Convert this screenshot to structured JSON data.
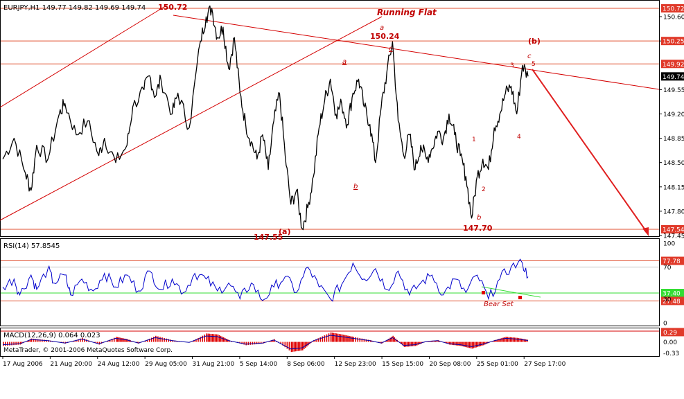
{
  "header": {
    "symbol_line": "EURJPY,H1  149.77 149.82 149.69 149.74",
    "rsi_label": "RSI(14) 57.8545",
    "macd_label": "MACD(12,26,9) 0.064 0.023",
    "copyright": "MetaTrader, © 2001-2006 MetaQuotes Software Corp."
  },
  "annotations": {
    "title": "Running Flat",
    "high_main": "150.72",
    "high_mid": "150.24",
    "low_a": "147.55",
    "low_b": "147.70",
    "wave_a_paren": "(a)",
    "wave_b_paren": "(b)",
    "wave_letters": {
      "a_top": "a",
      "c_top": "c",
      "a_mid": "a",
      "b_mid": "b",
      "b_low": "b",
      "c_right": "c"
    },
    "wave_numbers": {
      "n1": "1",
      "n2": "2",
      "n3": "3",
      "n4": "4",
      "n5": "5"
    },
    "bear_set": "Bear  Set"
  },
  "colors": {
    "price": "#000000",
    "rsi_line": "#0000cc",
    "macd_hist": "#e00000",
    "macd_signal": "#0000aa",
    "annotation": "#d40000",
    "level_line": "#e05030",
    "rsi_green": "#33dd33",
    "grid_text": "#000000"
  },
  "chart_data": {
    "type": "line",
    "instrument": "EURJPY",
    "timeframe": "H1",
    "current": {
      "open": 149.77,
      "high": 149.82,
      "low": 149.69,
      "close": 149.74
    },
    "price_axis": {
      "ticks": [
        "150.60",
        "150.25",
        "149.55",
        "149.20",
        "148.85",
        "148.50",
        "148.15",
        "147.80",
        "147.45"
      ],
      "ylim": [
        147.45,
        150.82
      ]
    },
    "price_badges": [
      {
        "value": 150.72,
        "label": "150.72",
        "fill": "#e03a2a",
        "fg": "#ffffff"
      },
      {
        "value": 150.25,
        "label": "150.25",
        "fill": "#e03a2a",
        "fg": "#ffffff"
      },
      {
        "value": 149.92,
        "label": "149.92",
        "fill": "#e03a2a",
        "fg": "#ffffff"
      },
      {
        "value": 149.74,
        "label": "149.74",
        "fill": "#000000",
        "fg": "#ffffff"
      },
      {
        "value": 147.54,
        "label": "147.54",
        "fill": "#e03a2a",
        "fg": "#ffffff"
      }
    ],
    "time_axis": [
      "17 Aug 2006",
      "21 Aug 20:00",
      "24 Aug 12:00",
      "29 Aug 05:00",
      "31 Aug 21:00",
      "5 Sep 14:00",
      "8 Sep 06:00",
      "12 Sep 23:00",
      "15 Sep 15:00",
      "20 Sep 08:00",
      "25 Sep 01:00",
      "27 Sep 17:00"
    ],
    "price_path": [
      [
        0,
        148.55
      ],
      [
        2,
        148.85
      ],
      [
        4,
        148.35
      ],
      [
        5,
        148.1
      ],
      [
        6,
        148.75
      ],
      [
        8,
        148.55
      ],
      [
        10,
        149.2
      ],
      [
        11,
        149.35
      ],
      [
        13,
        148.9
      ],
      [
        15,
        149.1
      ],
      [
        17,
        148.6
      ],
      [
        18,
        148.85
      ],
      [
        20,
        148.5
      ],
      [
        22,
        148.75
      ],
      [
        23,
        149.3
      ],
      [
        25,
        149.55
      ],
      [
        26,
        149.75
      ],
      [
        27,
        149.45
      ],
      [
        28,
        149.7
      ],
      [
        30,
        149.2
      ],
      [
        31,
        149.5
      ],
      [
        33,
        149.0
      ],
      [
        35,
        150.25
      ],
      [
        36,
        150.6
      ],
      [
        37,
        150.72
      ],
      [
        38,
        150.3
      ],
      [
        39,
        150.45
      ],
      [
        40,
        149.85
      ],
      [
        41,
        150.3
      ],
      [
        42,
        149.5
      ],
      [
        43,
        149.05
      ],
      [
        44,
        148.8
      ],
      [
        45,
        148.55
      ],
      [
        46,
        148.9
      ],
      [
        47,
        148.4
      ],
      [
        48,
        149.1
      ],
      [
        49,
        149.5
      ],
      [
        50,
        148.6
      ],
      [
        51,
        147.9
      ],
      [
        52,
        148.1
      ],
      [
        53,
        147.55
      ],
      [
        54,
        147.85
      ],
      [
        55,
        148.3
      ],
      [
        56,
        149.0
      ],
      [
        57,
        149.4
      ],
      [
        58,
        149.7
      ],
      [
        59,
        149.2
      ],
      [
        60,
        149.35
      ],
      [
        61,
        149.05
      ],
      [
        62,
        149.5
      ],
      [
        63,
        149.7
      ],
      [
        64,
        149.3
      ],
      [
        65,
        149.05
      ],
      [
        66,
        148.5
      ],
      [
        67,
        149.3
      ],
      [
        68,
        149.8
      ],
      [
        69,
        150.24
      ],
      [
        70,
        149.1
      ],
      [
        71,
        148.6
      ],
      [
        72,
        148.9
      ],
      [
        73,
        148.4
      ],
      [
        74,
        148.75
      ],
      [
        75,
        148.55
      ],
      [
        76,
        148.7
      ],
      [
        77,
        148.95
      ],
      [
        78,
        148.85
      ],
      [
        79,
        149.2
      ],
      [
        80,
        148.9
      ],
      [
        81,
        148.6
      ],
      [
        82,
        148.3
      ],
      [
        83,
        147.7
      ],
      [
        84,
        148.3
      ],
      [
        85,
        148.55
      ],
      [
        86,
        148.4
      ],
      [
        87,
        149.0
      ],
      [
        88,
        149.2
      ],
      [
        89,
        149.5
      ],
      [
        90,
        149.6
      ],
      [
        91,
        149.2
      ],
      [
        92,
        149.9
      ],
      [
        93,
        149.74
      ]
    ],
    "rsi": {
      "label": "RSI(14)",
      "value": 57.8545,
      "ylim": [
        0,
        100
      ],
      "axis_ticks": [
        "100",
        "70",
        "30",
        "0"
      ],
      "levels": [
        {
          "value": 77.78,
          "label": "77.78",
          "kind": "red"
        },
        {
          "value": 37.4,
          "label": "37.40",
          "kind": "green"
        },
        {
          "value": 27.48,
          "label": "27.48",
          "kind": "red"
        }
      ],
      "series": [
        [
          0,
          45
        ],
        [
          2,
          55
        ],
        [
          3,
          35
        ],
        [
          5,
          60
        ],
        [
          6,
          42
        ],
        [
          8,
          68
        ],
        [
          9,
          50
        ],
        [
          11,
          60
        ],
        [
          12,
          35
        ],
        [
          14,
          55
        ],
        [
          16,
          40
        ],
        [
          18,
          62
        ],
        [
          20,
          45
        ],
        [
          22,
          60
        ],
        [
          24,
          40
        ],
        [
          26,
          65
        ],
        [
          28,
          42
        ],
        [
          30,
          55
        ],
        [
          32,
          38
        ],
        [
          34,
          62
        ],
        [
          36,
          55
        ],
        [
          38,
          40
        ],
        [
          40,
          50
        ],
        [
          42,
          30
        ],
        [
          44,
          50
        ],
        [
          46,
          28
        ],
        [
          48,
          45
        ],
        [
          50,
          58
        ],
        [
          52,
          38
        ],
        [
          54,
          70
        ],
        [
          56,
          45
        ],
        [
          58,
          30
        ],
        [
          60,
          48
        ],
        [
          62,
          75
        ],
        [
          64,
          55
        ],
        [
          66,
          68
        ],
        [
          68,
          42
        ],
        [
          70,
          65
        ],
        [
          72,
          35
        ],
        [
          74,
          50
        ],
        [
          76,
          60
        ],
        [
          78,
          35
        ],
        [
          80,
          55
        ],
        [
          82,
          38
        ],
        [
          84,
          60
        ],
        [
          86,
          30
        ],
        [
          88,
          55
        ],
        [
          90,
          70
        ],
        [
          92,
          75
        ],
        [
          93,
          57.85
        ]
      ]
    },
    "macd": {
      "label": "MACD(12,26,9)",
      "main": 0.064,
      "signal": 0.023,
      "axis_ticks": [
        "0.29",
        "0.00",
        "-0.33"
      ],
      "ylim": [
        -0.4,
        0.34
      ],
      "histogram": [
        [
          0,
          -0.12
        ],
        [
          3,
          -0.08
        ],
        [
          5,
          0.1
        ],
        [
          8,
          0.05
        ],
        [
          11,
          -0.05
        ],
        [
          14,
          0.12
        ],
        [
          17,
          -0.08
        ],
        [
          20,
          0.15
        ],
        [
          22,
          0.08
        ],
        [
          24,
          -0.05
        ],
        [
          27,
          0.18
        ],
        [
          30,
          0.05
        ],
        [
          33,
          -0.02
        ],
        [
          36,
          0.25
        ],
        [
          38,
          0.22
        ],
        [
          40,
          0.05
        ],
        [
          43,
          -0.1
        ],
        [
          46,
          -0.05
        ],
        [
          48,
          0.08
        ],
        [
          51,
          -0.3
        ],
        [
          53,
          -0.25
        ],
        [
          55,
          0.05
        ],
        [
          58,
          0.28
        ],
        [
          60,
          0.22
        ],
        [
          62,
          0.15
        ],
        [
          65,
          0.05
        ],
        [
          67,
          -0.05
        ],
        [
          69,
          0.18
        ],
        [
          71,
          -0.15
        ],
        [
          73,
          -0.12
        ],
        [
          75,
          0.02
        ],
        [
          77,
          0.05
        ],
        [
          79,
          -0.08
        ],
        [
          81,
          -0.12
        ],
        [
          83,
          -0.2
        ],
        [
          85,
          -0.1
        ],
        [
          87,
          0.05
        ],
        [
          89,
          0.15
        ],
        [
          91,
          0.12
        ],
        [
          93,
          0.06
        ]
      ]
    }
  }
}
